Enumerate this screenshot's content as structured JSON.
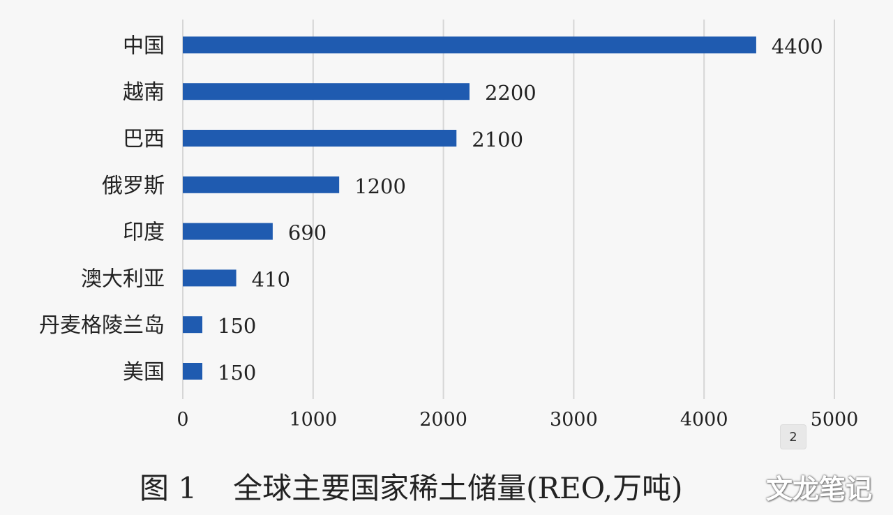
{
  "chart_data": {
    "type": "bar",
    "orientation": "horizontal",
    "categories": [
      "中国",
      "越南",
      "巴西",
      "俄罗斯",
      "印度",
      "澳大利亚",
      "丹麦格陵兰岛",
      "美国"
    ],
    "values": [
      4400,
      2200,
      2100,
      1200,
      690,
      410,
      150,
      150
    ],
    "data_labels": [
      "4400",
      "2200",
      "2100",
      "1200",
      "690",
      "410",
      "150",
      "150"
    ],
    "xlim": [
      0,
      5000
    ],
    "x_ticks": [
      0,
      1000,
      2000,
      3000,
      4000,
      5000
    ],
    "x_tick_labels": [
      "0",
      "1000",
      "2000",
      "3000",
      "4000",
      "5000"
    ],
    "grid": "vertical",
    "bar_color": "#1f5bb0"
  },
  "caption": {
    "figure_number": "图 1",
    "title": "全球主要国家稀土储量(REO,万吨)"
  },
  "page_badge": "2",
  "watermark": "文龙笔记"
}
